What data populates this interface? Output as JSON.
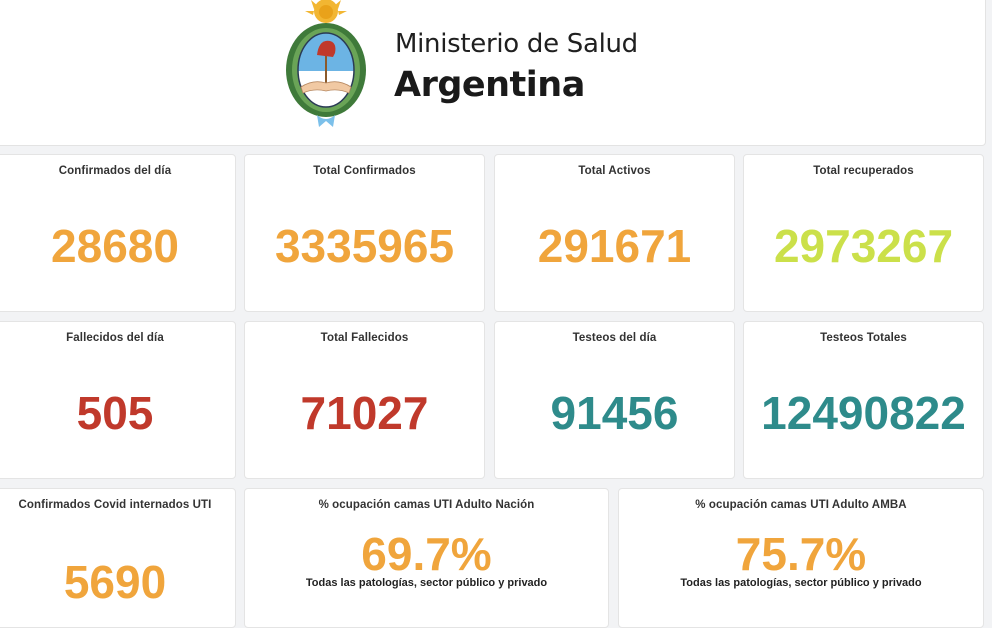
{
  "header": {
    "ministry": "Ministerio de Salud",
    "country": "Argentina"
  },
  "colors": {
    "orange": "#f0a53c",
    "green": "#cbe04a",
    "red": "#c0392b",
    "teal": "#2e8b8b"
  },
  "cards": [
    {
      "label": "Confirmados del día",
      "value": "28680"
    },
    {
      "label": "Total Confirmados",
      "value": "3335965"
    },
    {
      "label": "Total Activos",
      "value": "291671"
    },
    {
      "label": "Total recuperados",
      "value": "2973267"
    },
    {
      "label": "Fallecidos del día",
      "value": "505"
    },
    {
      "label": "Total Fallecidos",
      "value": "71027"
    },
    {
      "label": "Testeos del día",
      "value": "91456"
    },
    {
      "label": "Testeos Totales",
      "value": "12490822"
    },
    {
      "label": "Confirmados Covid internados UTI",
      "value": "5690"
    },
    {
      "label": "% ocupación camas UTI Adulto Nación",
      "value": "69.7%",
      "sub": "Todas las patologías, sector público y privado"
    },
    {
      "label": "% ocupación camas UTI Adulto AMBA",
      "value": "75.7%",
      "sub": "Todas las patologías, sector público y privado"
    }
  ]
}
